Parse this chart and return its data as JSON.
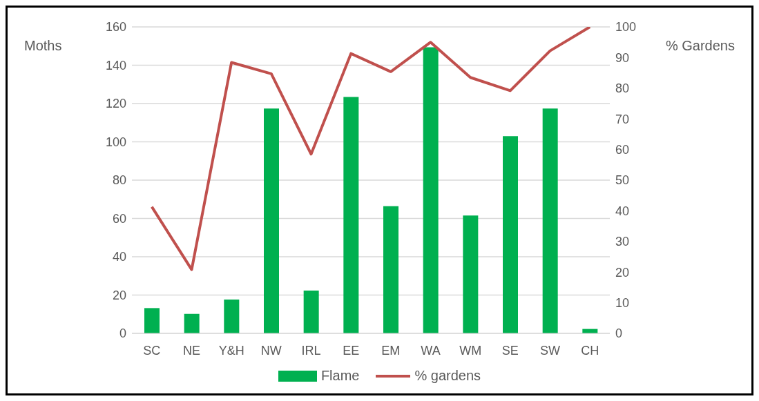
{
  "chart_data": {
    "type": "bar",
    "ylabel": "Moths",
    "y2label": "% Gardens",
    "categories": [
      "SC",
      "NE",
      "Y&H",
      "NW",
      "IRL",
      "EE",
      "EM",
      "WA",
      "WM",
      "SE",
      "SW",
      "CH"
    ],
    "series": [
      {
        "name": "Flame",
        "color": "#00b050",
        "values": [
          13.2,
          10.2,
          17.7,
          117.4,
          22.3,
          123.4,
          66.4,
          149.4,
          61.5,
          103,
          117.4,
          2.3
        ]
      },
      {
        "name": "% gardens",
        "type": "line",
        "axis": "y2",
        "color": "#c0504d",
        "values": [
          41.3,
          20.8,
          88.4,
          84.7,
          58.5,
          91.3,
          85.4,
          95,
          83.5,
          79.2,
          92.2,
          100
        ]
      }
    ],
    "ylim": [
      0,
      160
    ],
    "yticks": [
      0,
      20,
      40,
      60,
      80,
      100,
      120,
      140,
      160
    ],
    "y2lim": [
      0,
      100
    ],
    "y2ticks": [
      0,
      10,
      20,
      30,
      40,
      50,
      60,
      70,
      80,
      90,
      100
    ],
    "grid": "y",
    "legend": "bottom",
    "marker": "none",
    "line_style": "solid"
  }
}
